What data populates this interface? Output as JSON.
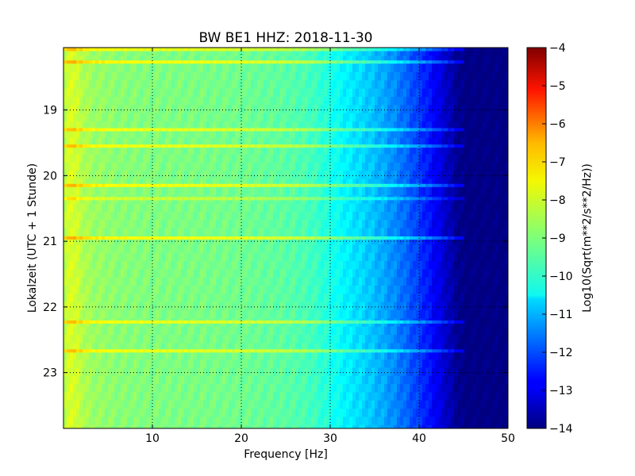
{
  "chart_data": {
    "type": "heatmap",
    "title": "BW BE1 HHZ: 2018-11-30",
    "xlabel": "Frequency [Hz]",
    "ylabel": "Lokalzeit (UTC + 1 Stunde)",
    "xlim": [
      0,
      50
    ],
    "ylim": [
      18.05,
      23.85
    ],
    "y_inverted": true,
    "x_ticks": [
      10,
      20,
      30,
      40,
      50
    ],
    "x_tick_labels": [
      "10",
      "20",
      "30",
      "40",
      "50"
    ],
    "y_ticks": [
      19,
      20,
      21,
      22,
      23
    ],
    "y_tick_labels": [
      "19",
      "20",
      "21",
      "22",
      "23"
    ],
    "grid": true,
    "colormap": "jet",
    "colorbar": {
      "label": "Log10(Sqrt(m**2/s**2/Hz))",
      "range": [
        -14,
        -4
      ],
      "ticks": [
        -4,
        -5,
        -6,
        -7,
        -8,
        -9,
        -10,
        -11,
        -12,
        -13,
        -14
      ],
      "tick_labels": [
        "−4",
        "−5",
        "−6",
        "−7",
        "−8",
        "−9",
        "−10",
        "−11",
        "−12",
        "−13",
        "−14"
      ]
    },
    "spectrum_profile": {
      "frequency_hz": [
        0,
        0.8,
        1.5,
        3,
        6,
        10,
        15,
        20,
        25,
        28,
        30,
        32,
        34,
        36,
        38,
        40,
        42,
        43,
        44,
        45,
        50
      ],
      "log10_amplitude": [
        -8.6,
        -8.0,
        -8.3,
        -8.7,
        -8.9,
        -9.0,
        -9.05,
        -9.15,
        -9.35,
        -9.6,
        -10.0,
        -10.4,
        -10.7,
        -11.1,
        -11.6,
        -12.2,
        -12.9,
        -13.3,
        -13.7,
        -14.0,
        -14.0
      ]
    },
    "bands": [
      {
        "time": 18.08,
        "log10_offset": 1.0
      },
      {
        "time": 18.27,
        "log10_offset": 1.15
      },
      {
        "time": 19.3,
        "log10_offset": 1.0
      },
      {
        "time": 19.55,
        "log10_offset": 1.0
      },
      {
        "time": 20.15,
        "log10_offset": 1.1
      },
      {
        "time": 20.35,
        "log10_offset": 0.7
      },
      {
        "time": 20.95,
        "log10_offset": 1.15
      },
      {
        "time": 22.23,
        "log10_offset": 1.0
      },
      {
        "time": 22.67,
        "log10_offset": 1.0
      }
    ]
  }
}
